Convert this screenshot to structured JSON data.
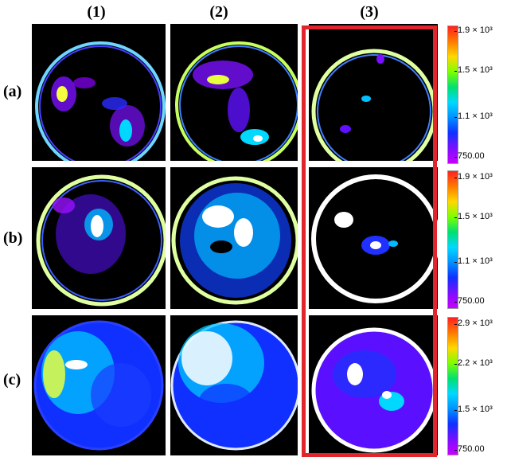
{
  "columns": [
    "(1)",
    "(2)",
    "(3)"
  ],
  "rows": [
    "(a)",
    "(b)",
    "(c)"
  ],
  "colorbars": [
    {
      "ticks": [
        "1.9 × 10³",
        "1.5 × 10³",
        "1.1 × 10³",
        "750.00"
      ]
    },
    {
      "ticks": [
        "1.9 × 10³",
        "1.5 × 10³",
        "1.1 × 10³",
        "750.00"
      ]
    },
    {
      "ticks": [
        "2.9 × 10³",
        "2.2 × 10³",
        "1.5 × 10³",
        "750.00"
      ]
    }
  ],
  "highlight_color": "#e0262a"
}
